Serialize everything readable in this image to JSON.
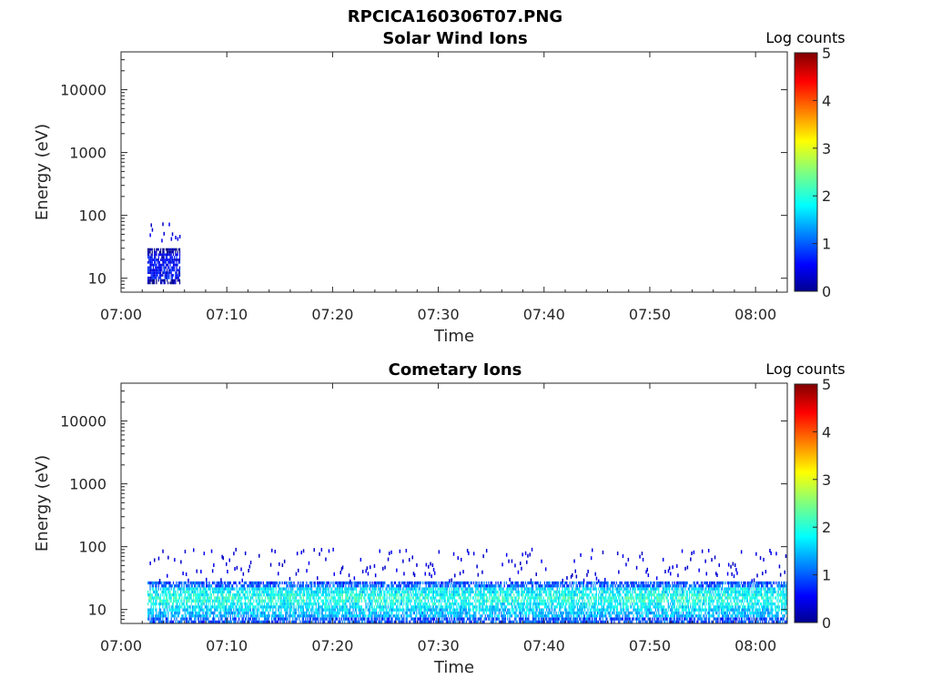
{
  "figure": {
    "title": "RPCICA160306T07.PNG"
  },
  "colorbar": {
    "label": "Log counts",
    "ticks": [
      "0",
      "1",
      "2",
      "3",
      "4",
      "5"
    ],
    "range": [
      0,
      5
    ],
    "colormap": "jet"
  },
  "chart_data": [
    {
      "type": "heatmap",
      "title": "Solar Wind Ions",
      "xlabel": "Time",
      "ylabel": "Energy (eV)",
      "x_ticks": [
        "07:00",
        "07:10",
        "07:20",
        "07:30",
        "07:40",
        "07:50",
        "08:00"
      ],
      "x_range_minutes": [
        0,
        63
      ],
      "y_ticks": [
        "10",
        "100",
        "1000",
        "10000"
      ],
      "y_scale": "log",
      "y_range": [
        6,
        40000
      ],
      "color_label": "Log counts",
      "color_range": [
        0,
        5
      ],
      "bands": [
        {
          "t_start": 2.5,
          "t_end": 5.5,
          "e_low": 8,
          "e_high": 30,
          "log_counts": 0.6,
          "scatter_high": 80
        }
      ]
    },
    {
      "type": "heatmap",
      "title": "Cometary Ions",
      "xlabel": "Time",
      "ylabel": "Energy (eV)",
      "x_ticks": [
        "07:00",
        "07:10",
        "07:20",
        "07:30",
        "07:40",
        "07:50",
        "08:00"
      ],
      "x_range_minutes": [
        0,
        63
      ],
      "y_ticks": [
        "10",
        "100",
        "1000",
        "10000"
      ],
      "y_scale": "log",
      "y_range": [
        6,
        40000
      ],
      "color_label": "Log counts",
      "color_range": [
        0,
        5
      ],
      "bands": [
        {
          "t_start": 2.5,
          "t_end": 63,
          "e_low": 6,
          "e_high": 28,
          "log_counts": 1.5,
          "peak_energy": 15,
          "peak_log_counts": 2.2,
          "scatter_high": 90
        }
      ]
    }
  ]
}
